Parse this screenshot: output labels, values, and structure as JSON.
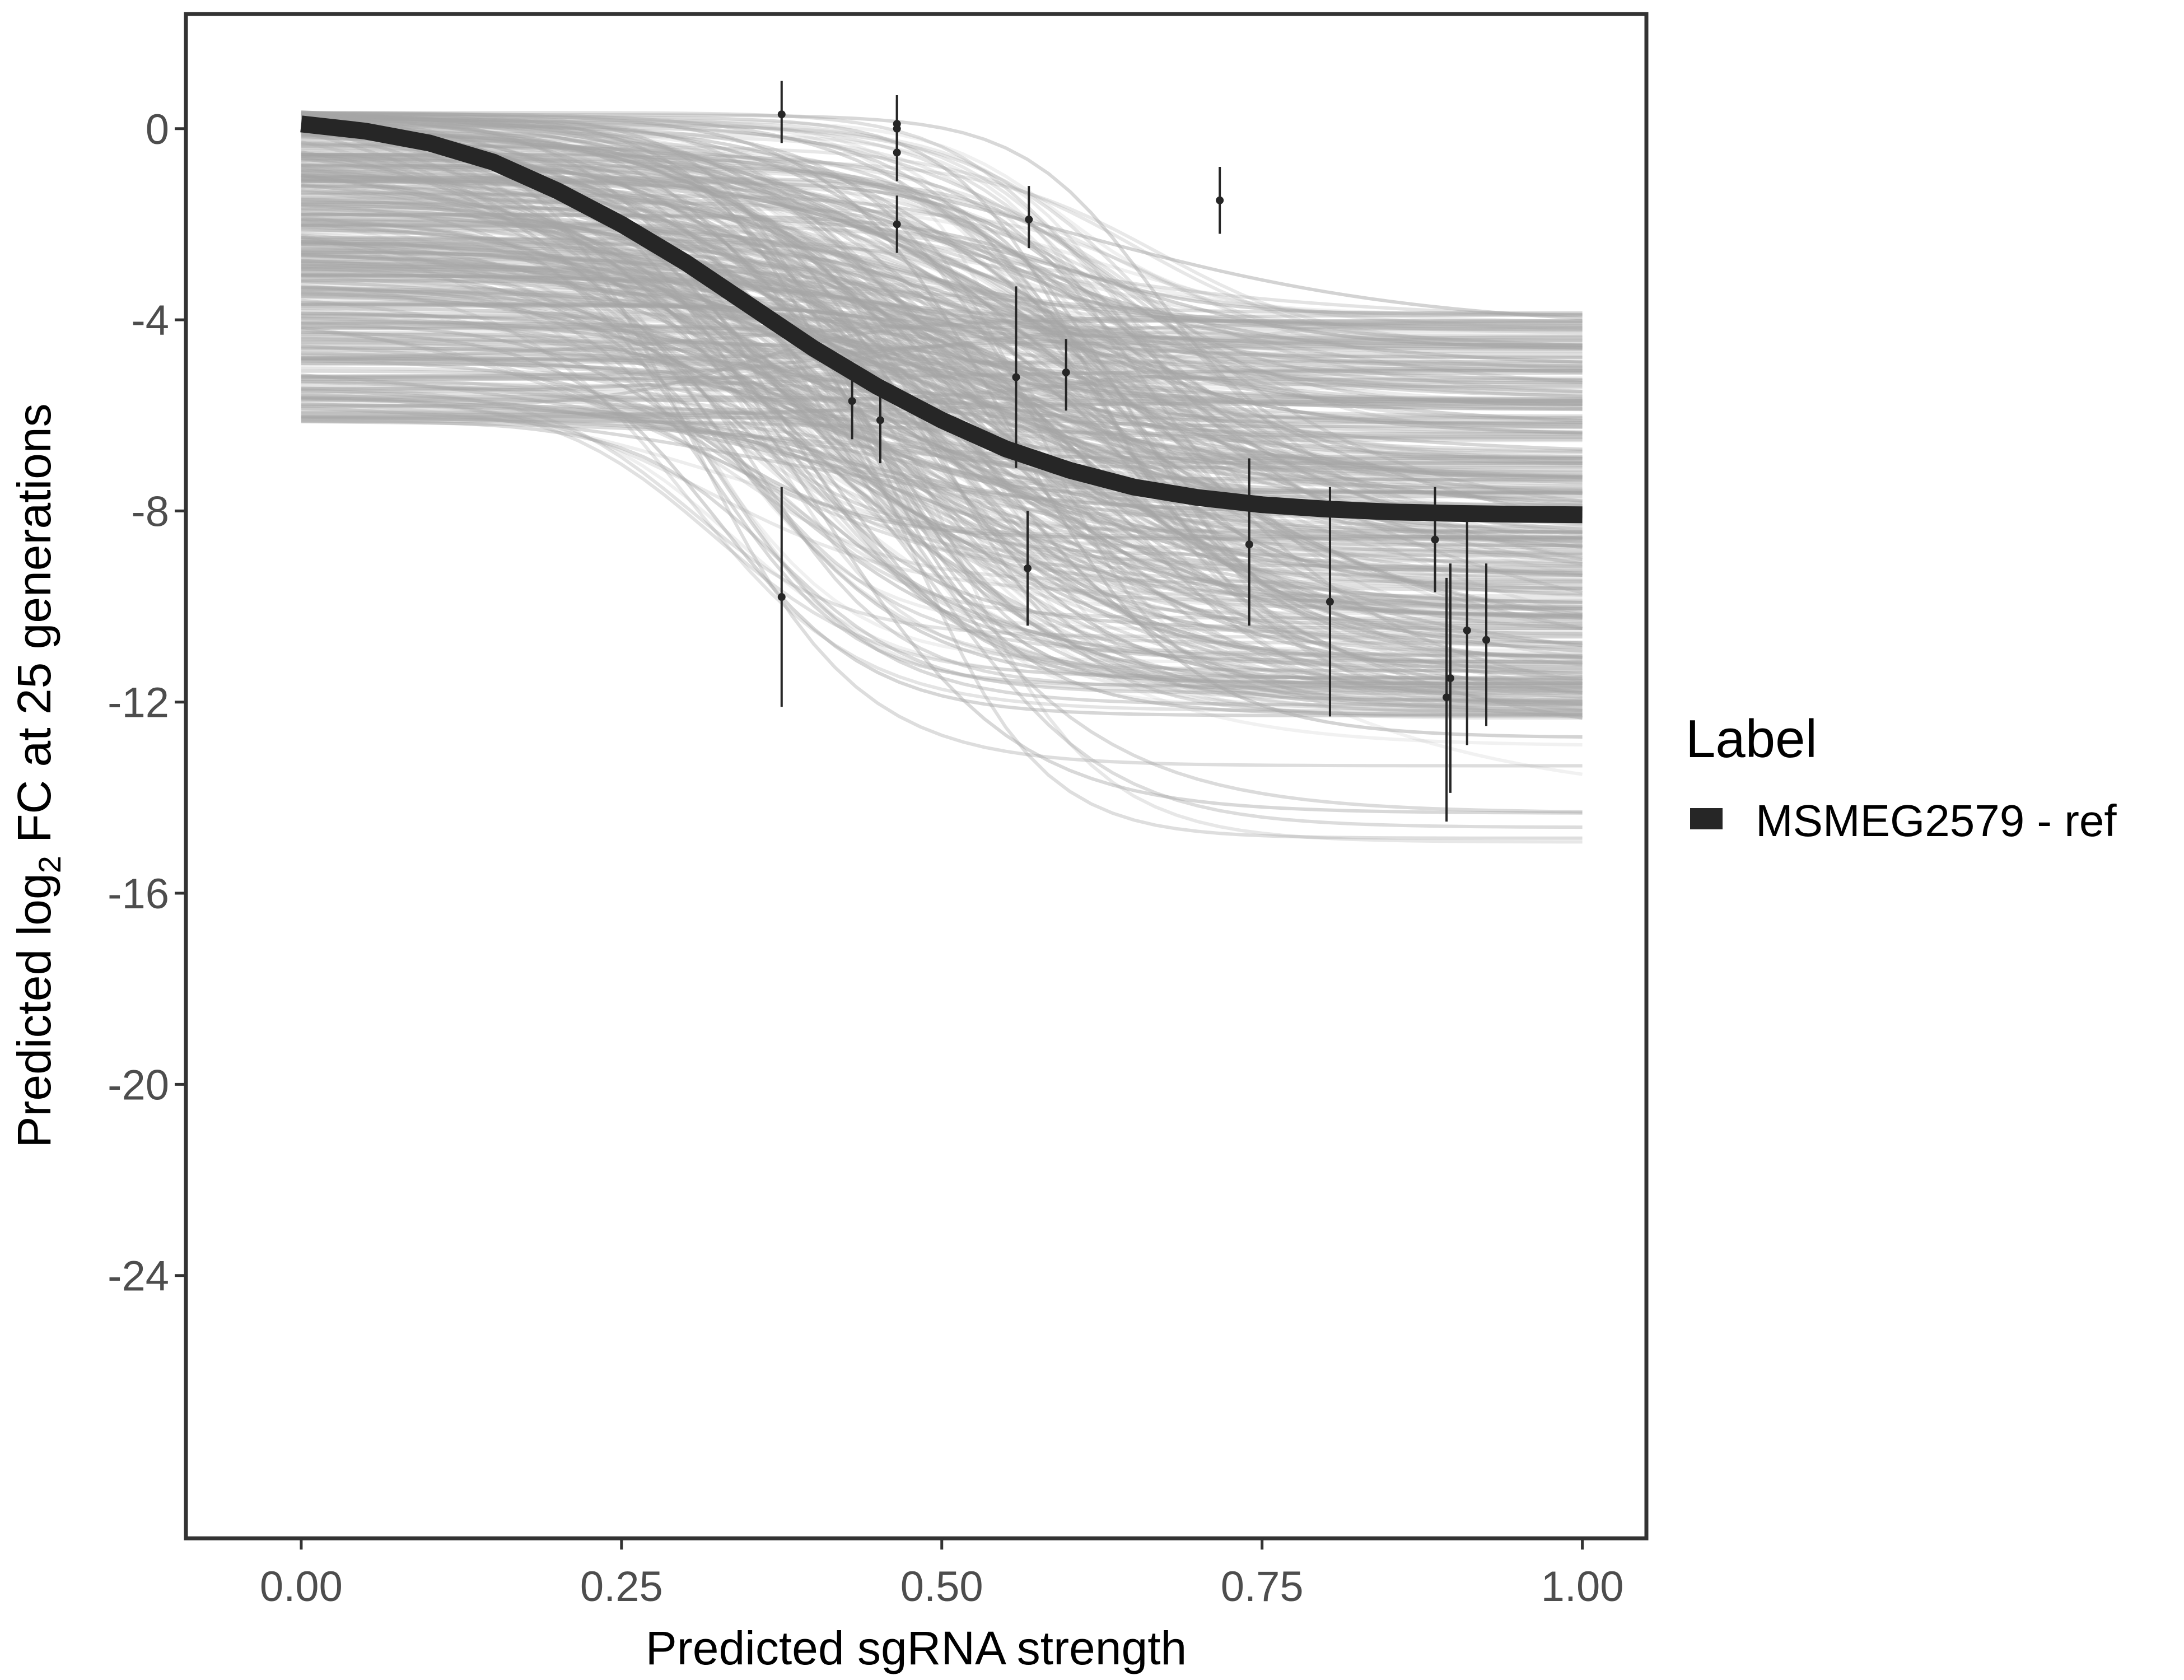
{
  "chart_data": {
    "type": "line",
    "xlabel": "Predicted sgRNA strength",
    "ylabel": {
      "prefix": "Predicted  log",
      "subscript": "2",
      "suffix": " FC at 25 generations"
    },
    "xlim": [
      -0.09,
      1.05
    ],
    "ylim": [
      -29.5,
      2.4
    ],
    "x_ticks": [
      "0.00",
      "0.25",
      "0.50",
      "0.75",
      "1.00"
    ],
    "x_tick_values": [
      0,
      0.25,
      0.5,
      0.75,
      1
    ],
    "y_ticks": [
      "0",
      "-4",
      "-8",
      "-12",
      "-16",
      "-20",
      "-24"
    ],
    "y_tick_values": [
      0,
      -4,
      -8,
      -12,
      -16,
      -20,
      -24
    ],
    "grid": false,
    "legend": {
      "title": "Label",
      "position": "right",
      "entries": [
        {
          "label": "MSMEG2579 - ref",
          "color": "#262626"
        }
      ]
    },
    "series": [
      {
        "name": "MSMEG2579 - ref",
        "color": "#262626",
        "x": [
          0.0,
          0.05,
          0.1,
          0.15,
          0.2,
          0.25,
          0.3,
          0.35,
          0.4,
          0.45,
          0.5,
          0.55,
          0.6,
          0.65,
          0.7,
          0.75,
          0.8,
          0.85,
          0.9,
          0.95,
          1.0
        ],
        "y": [
          0.1,
          -0.05,
          -0.3,
          -0.7,
          -1.3,
          -2.0,
          -2.8,
          -3.7,
          -4.6,
          -5.4,
          -6.1,
          -6.7,
          -7.15,
          -7.5,
          -7.72,
          -7.87,
          -7.96,
          -8.02,
          -8.05,
          -8.07,
          -8.08
        ]
      }
    ],
    "points": [
      {
        "x": 0.375,
        "y": 0.3,
        "lo": -0.3,
        "hi": 1.0
      },
      {
        "x": 0.375,
        "y": -9.8,
        "lo": -12.1,
        "hi": -7.5
      },
      {
        "x": 0.43,
        "y": -5.7,
        "lo": -6.5,
        "hi": -5.0
      },
      {
        "x": 0.452,
        "y": -6.1,
        "lo": -7.0,
        "hi": -5.3
      },
      {
        "x": 0.465,
        "y": 0.1,
        "lo": -0.5,
        "hi": 0.7
      },
      {
        "x": 0.465,
        "y": 0.0,
        "lo": -0.5,
        "hi": 0.6
      },
      {
        "x": 0.465,
        "y": -0.5,
        "lo": -1.1,
        "hi": 0.1
      },
      {
        "x": 0.465,
        "y": -2.0,
        "lo": -2.6,
        "hi": -1.4
      },
      {
        "x": 0.558,
        "y": -5.2,
        "lo": -7.1,
        "hi": -3.3
      },
      {
        "x": 0.567,
        "y": -9.2,
        "lo": -10.4,
        "hi": -8.0
      },
      {
        "x": 0.568,
        "y": -1.9,
        "lo": -2.5,
        "hi": -1.2
      },
      {
        "x": 0.597,
        "y": -5.1,
        "lo": -5.9,
        "hi": -4.4
      },
      {
        "x": 0.717,
        "y": -1.5,
        "lo": -2.2,
        "hi": -0.8
      },
      {
        "x": 0.74,
        "y": -8.7,
        "lo": -10.4,
        "hi": -6.9
      },
      {
        "x": 0.803,
        "y": -9.9,
        "lo": -12.3,
        "hi": -7.5
      },
      {
        "x": 0.885,
        "y": -8.6,
        "lo": -9.7,
        "hi": -7.5
      },
      {
        "x": 0.894,
        "y": -11.9,
        "lo": -14.5,
        "hi": -9.4
      },
      {
        "x": 0.897,
        "y": -11.5,
        "lo": -13.9,
        "hi": -9.1
      },
      {
        "x": 0.91,
        "y": -10.5,
        "lo": -12.9,
        "hi": -8.1
      },
      {
        "x": 0.925,
        "y": -10.7,
        "lo": -12.5,
        "hi": -9.1
      }
    ]
  }
}
